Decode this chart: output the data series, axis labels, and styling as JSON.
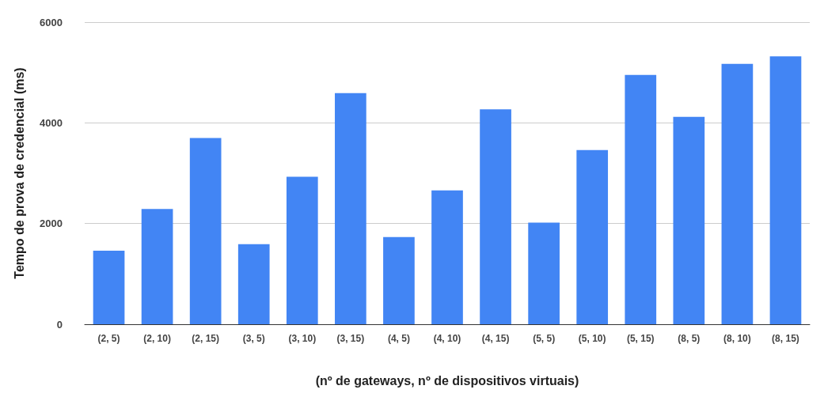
{
  "chart_data": {
    "type": "bar",
    "xlabel": "(nº de gateways, nº de dispositivos virtuais)",
    "ylabel": "Tempo de prova de credencial (ms)",
    "categories": [
      "(2, 5)",
      "(2, 10)",
      "(2, 15)",
      "(3, 5)",
      "(3, 10)",
      "(3, 15)",
      "(4, 5)",
      "(4, 10)",
      "(4, 15)",
      "(5, 5)",
      "(5, 10)",
      "(5, 15)",
      "(8, 5)",
      "(8, 10)",
      "(8, 15)"
    ],
    "values": [
      1460,
      2290,
      3700,
      1590,
      2930,
      4590,
      1730,
      2660,
      4270,
      2020,
      3460,
      4950,
      4120,
      5170,
      5320
    ],
    "color": "#4285f4",
    "ylim": [
      0,
      6000
    ],
    "yticks": [
      0,
      2000,
      4000,
      6000
    ],
    "grid": "y"
  }
}
